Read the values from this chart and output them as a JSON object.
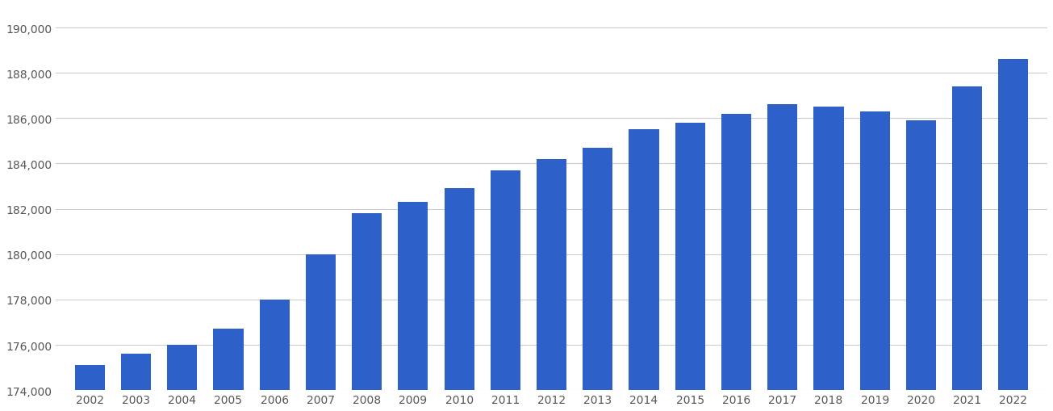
{
  "years": [
    2002,
    2003,
    2004,
    2005,
    2006,
    2007,
    2008,
    2009,
    2010,
    2011,
    2012,
    2013,
    2014,
    2015,
    2016,
    2017,
    2018,
    2019,
    2020,
    2021,
    2022
  ],
  "values": [
    175100,
    175600,
    176000,
    176700,
    178000,
    180000,
    181800,
    182300,
    182900,
    183700,
    184200,
    184700,
    185500,
    185800,
    186200,
    186600,
    186500,
    186300,
    185900,
    187400,
    188600
  ],
  "bar_color": "#2d60c8",
  "background_color": "#ffffff",
  "grid_color": "#cccccc",
  "tick_color": "#555555",
  "ylim_min": 174000,
  "ylim_max": 191000,
  "ytick_step": 2000,
  "fig_width": 13.05,
  "fig_height": 5.1
}
